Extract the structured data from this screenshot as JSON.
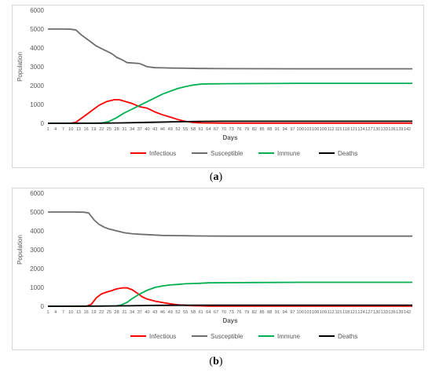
{
  "captions": [
    "(a)",
    "(b)"
  ],
  "chart_data": [
    {
      "type": "line",
      "xlabel": "Days",
      "ylabel": "Population",
      "ylim": [
        0,
        6000
      ],
      "yticks": [
        0,
        1000,
        2000,
        3000,
        4000,
        5000,
        6000
      ],
      "xlim": [
        1,
        144
      ],
      "xticks": [
        1,
        4,
        7,
        10,
        13,
        16,
        19,
        22,
        25,
        28,
        31,
        34,
        37,
        40,
        43,
        46,
        49,
        52,
        55,
        58,
        61,
        64,
        67,
        70,
        73,
        76,
        79,
        82,
        85,
        88,
        91,
        94,
        97,
        100,
        103,
        106,
        109,
        112,
        115,
        118,
        121,
        124,
        127,
        130,
        133,
        136,
        139,
        142
      ],
      "legend_position": "bottom",
      "grid": false,
      "series": [
        {
          "name": "Infectious",
          "color": "#ff0000",
          "x": [
            1,
            10,
            12,
            15,
            18,
            21,
            24,
            27,
            29,
            31,
            34,
            37,
            40,
            43,
            46,
            49,
            52,
            55,
            58,
            61,
            70,
            100,
            144
          ],
          "y": [
            0,
            0,
            60,
            350,
            650,
            950,
            1150,
            1250,
            1250,
            1170,
            1050,
            880,
            800,
            600,
            450,
            330,
            200,
            100,
            50,
            20,
            10,
            10,
            10
          ]
        },
        {
          "name": "Susceptible",
          "color": "#6e6e6e",
          "x": [
            1,
            7,
            10,
            12,
            14,
            17,
            20,
            23,
            26,
            28,
            30,
            32,
            34,
            37,
            40,
            43,
            46,
            50,
            55,
            60,
            70,
            100,
            144
          ],
          "y": [
            5000,
            5000,
            4990,
            4950,
            4700,
            4400,
            4100,
            3900,
            3700,
            3500,
            3380,
            3220,
            3200,
            3170,
            3000,
            2950,
            2940,
            2930,
            2920,
            2910,
            2900,
            2890,
            2890
          ]
        },
        {
          "name": "Immune",
          "color": "#00b050",
          "x": [
            1,
            22,
            25,
            28,
            31,
            34,
            37,
            40,
            43,
            46,
            49,
            52,
            55,
            58,
            61,
            64,
            70,
            100,
            144
          ],
          "y": [
            0,
            10,
            100,
            300,
            550,
            750,
            950,
            1150,
            1350,
            1550,
            1700,
            1850,
            1950,
            2030,
            2080,
            2090,
            2100,
            2120,
            2120
          ]
        },
        {
          "name": "Deaths",
          "color": "#000000",
          "x": [
            1,
            20,
            30,
            40,
            50,
            60,
            70,
            100,
            144
          ],
          "y": [
            0,
            5,
            20,
            50,
            80,
            100,
            110,
            110,
            110
          ]
        }
      ]
    },
    {
      "type": "line",
      "xlabel": "Days",
      "ylabel": "Population",
      "ylim": [
        0,
        6000
      ],
      "yticks": [
        0,
        1000,
        2000,
        3000,
        4000,
        5000,
        6000
      ],
      "xlim": [
        1,
        144
      ],
      "xticks": [
        1,
        4,
        7,
        10,
        13,
        16,
        19,
        22,
        25,
        28,
        31,
        34,
        37,
        40,
        43,
        46,
        49,
        52,
        55,
        58,
        61,
        64,
        67,
        70,
        73,
        76,
        79,
        82,
        85,
        88,
        91,
        94,
        97,
        100,
        103,
        106,
        109,
        112,
        115,
        118,
        121,
        124,
        127,
        130,
        133,
        136,
        139,
        142
      ],
      "legend_position": "bottom",
      "grid": false,
      "series": [
        {
          "name": "Infectious",
          "color": "#ff0000",
          "x": [
            1,
            16,
            18,
            20,
            22,
            24,
            26,
            28,
            30,
            32,
            34,
            36,
            38,
            40,
            43,
            46,
            49,
            52,
            55,
            58,
            64,
            100,
            144
          ],
          "y": [
            0,
            0,
            100,
            450,
            650,
            750,
            830,
            920,
            970,
            980,
            880,
            700,
            500,
            380,
            270,
            200,
            130,
            80,
            50,
            30,
            10,
            10,
            10
          ]
        },
        {
          "name": "Susceptible",
          "color": "#6e6e6e",
          "x": [
            1,
            10,
            15,
            17,
            19,
            21,
            23,
            25,
            28,
            31,
            34,
            37,
            40,
            43,
            46,
            50,
            55,
            60,
            70,
            100,
            144
          ],
          "y": [
            5000,
            5000,
            4990,
            4950,
            4600,
            4350,
            4200,
            4100,
            4000,
            3900,
            3850,
            3820,
            3800,
            3780,
            3760,
            3750,
            3740,
            3730,
            3720,
            3720,
            3720
          ]
        },
        {
          "name": "Immune",
          "color": "#00b050",
          "x": [
            1,
            28,
            30,
            32,
            34,
            37,
            40,
            43,
            46,
            49,
            52,
            55,
            58,
            61,
            64,
            70,
            80,
            100,
            144
          ],
          "y": [
            0,
            20,
            80,
            200,
            400,
            650,
            850,
            1000,
            1080,
            1130,
            1160,
            1190,
            1210,
            1220,
            1240,
            1250,
            1260,
            1270,
            1270
          ]
        },
        {
          "name": "Deaths",
          "color": "#000000",
          "x": [
            1,
            20,
            30,
            40,
            50,
            60,
            100,
            144
          ],
          "y": [
            0,
            5,
            20,
            40,
            55,
            60,
            60,
            60
          ]
        }
      ]
    }
  ]
}
